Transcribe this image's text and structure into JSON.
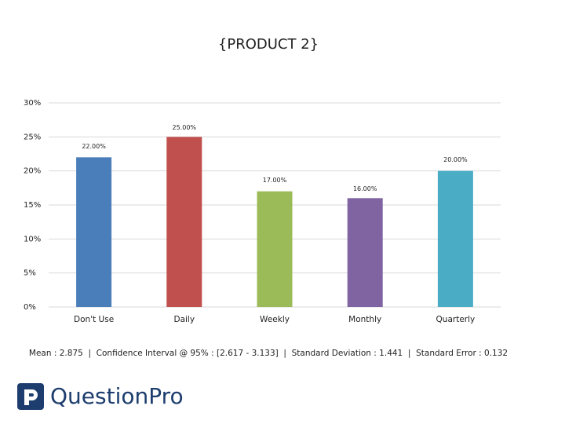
{
  "chart_data": {
    "type": "bar",
    "title": "{PRODUCT 2}",
    "categories": [
      "Don't Use",
      "Daily",
      "Weekly",
      "Monthly",
      "Quarterly"
    ],
    "values": [
      22,
      25,
      17,
      16,
      20
    ],
    "value_labels": [
      "22.00%",
      "25.00%",
      "17.00%",
      "16.00%",
      "20.00%"
    ],
    "colors": [
      "#4a7ebb",
      "#c0504d",
      "#9bbb59",
      "#8064a2",
      "#4bacc6"
    ],
    "ylim": [
      0,
      30
    ],
    "yticks": [
      {
        "value": 0,
        "label": "0%"
      },
      {
        "value": 5,
        "label": "5%"
      },
      {
        "value": 10,
        "label": "10%"
      },
      {
        "value": 15,
        "label": "15%"
      },
      {
        "value": 20,
        "label": "20%"
      },
      {
        "value": 25,
        "label": "25%"
      },
      {
        "value": 30,
        "label": "30%"
      }
    ],
    "grid": true
  },
  "footer": {
    "stats": "Mean : 2.875  |  Confidence Interval @ 95% : [2.617 - 3.133]  |  Standard Deviation : 1.441  |  Standard Error : 0.132",
    "brand": "QuestionPro"
  }
}
